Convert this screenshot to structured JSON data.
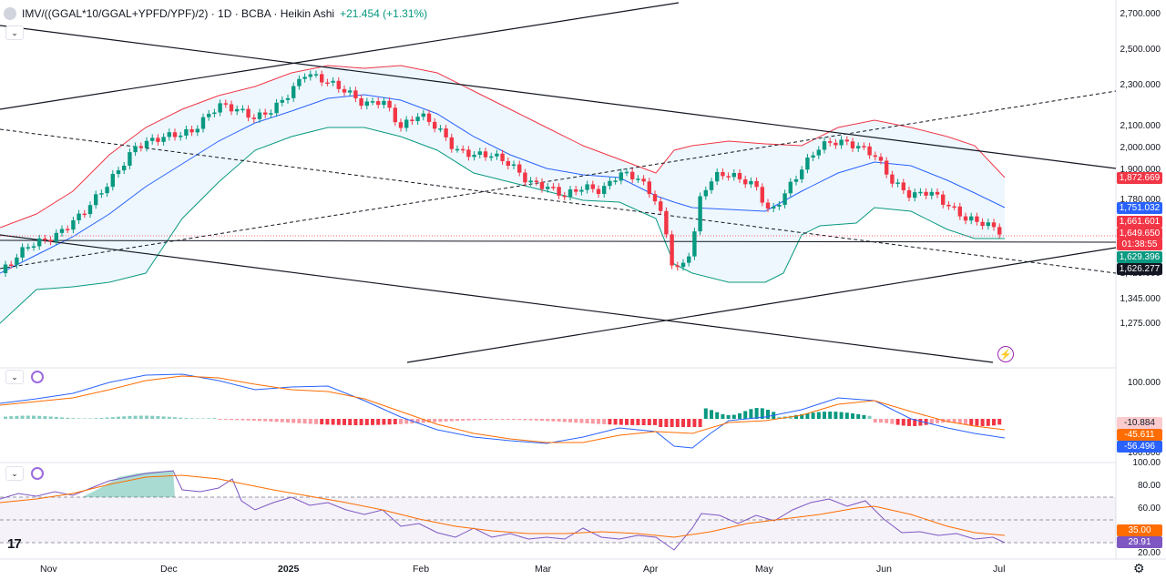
{
  "header": {
    "symbol": "IMV/((GGAL*10/GGAL+YPFD/YPF)/2) · 1D · BCBA · Heikin Ashi",
    "change": "+21.454 (+1.31%)"
  },
  "price_axis": [
    "2,700.000",
    "2,500.000",
    "2,300.000",
    "2,100.000",
    "2,000.000",
    "1,900.000",
    "1,780.000",
    "1,425.000",
    "1,345.000",
    "1,275.000"
  ],
  "price_tags": [
    {
      "label": "1,872.669",
      "color": "#f23645"
    },
    {
      "label": "1,751.032",
      "color": "#2962ff"
    },
    {
      "label": "1,661.601",
      "color": "#f23645"
    },
    {
      "label": "1,649.650",
      "color": "#f23645"
    },
    {
      "label": "01:38:55",
      "color": "#f23645"
    },
    {
      "label": "1,629.396",
      "color": "#089981"
    },
    {
      "label": "1,626.277",
      "color": "#131722"
    }
  ],
  "macd_axis": [
    "100.000",
    "100.000"
  ],
  "macd_tags": [
    {
      "label": "-10.884",
      "color": "#fccbcd",
      "text": "#131722"
    },
    {
      "label": "-45.611",
      "color": "#ff6d00",
      "text": "#ffffff"
    },
    {
      "label": "-56.496",
      "color": "#2962ff",
      "text": "#ffffff"
    }
  ],
  "rsi_axis": [
    "100.00",
    "80.00",
    "60.00",
    "20.00"
  ],
  "rsi_tags": [
    {
      "label": "35.00",
      "color": "#ff6d00"
    },
    {
      "label": "29.91",
      "color": "#7e57c2"
    }
  ],
  "time_axis": [
    "Nov",
    "Dec",
    "2025",
    "Feb",
    "Mar",
    "Apr",
    "May",
    "Jun",
    "Jul"
  ],
  "icons": {
    "collapse": "chevron-down-icon",
    "refresh": "refresh-icon",
    "alert": "lightning-icon",
    "settings": "gear-icon",
    "logo": "tradingview-logo"
  },
  "tv_logo": "17",
  "alert_glyph": "⚡",
  "gear_glyph": "⚙",
  "collapse_glyph": "⌄",
  "colors": {
    "up": "#089981",
    "down": "#f23645",
    "bb_upper": "#f23645",
    "bb_basis": "#2962ff",
    "bb_lower": "#089981",
    "macd": "#2962ff",
    "signal": "#ff6d00",
    "rsi": "#7e57c2"
  }
}
